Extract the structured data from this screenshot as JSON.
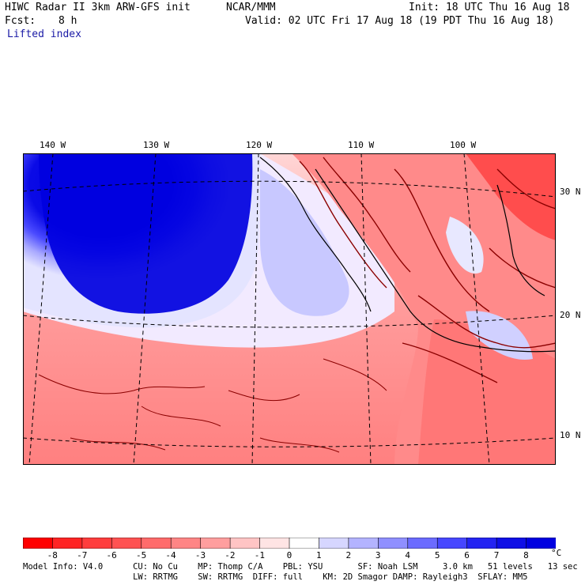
{
  "header": {
    "model": "HIWC Radar II 3km ARW-GFS init",
    "center": "NCAR/MMM",
    "init": "Init: 18 UTC Thu 16 Aug 18",
    "fcst_label": "Fcst:",
    "fcst_value": "8 h",
    "valid": "Valid: 02 UTC Fri 17 Aug 18 (19 PDT Thu 16 Aug 18)",
    "field": "Lifted index"
  },
  "map": {
    "lon_labels": [
      "140 W",
      "130 W",
      "120 W",
      "110 W",
      "100 W"
    ],
    "lat_labels": [
      "30 N",
      "20 N",
      "10 N"
    ],
    "colors": {
      "negative_strong": "#ff0000",
      "positive_strong": "#0000e6",
      "land_contour": "#8b0000"
    }
  },
  "colorbar": {
    "ticks": [
      "-8",
      "-7",
      "-6",
      "-5",
      "-4",
      "-3",
      "-2",
      "-1",
      "0",
      "1",
      "2",
      "3",
      "4",
      "5",
      "6",
      "7",
      "8"
    ],
    "unit": "°C",
    "colors": [
      "#ff0000",
      "#ff2424",
      "#ff3d3d",
      "#ff5252",
      "#ff6b6b",
      "#ff8585",
      "#ff9e9e",
      "#ffc4c4",
      "#ffe4e4",
      "#ffffff",
      "#d6d6ff",
      "#b3b3ff",
      "#8f8fff",
      "#6b6bff",
      "#4747ff",
      "#2424f2",
      "#0f0fe6",
      "#0000e0"
    ]
  },
  "model_info": {
    "line1": "Model Info: V4.0      CU: No Cu    MP: Thomp C/A    PBL: YSU       SF: Noah LSM     3.0 km   51 levels   13 sec",
    "line2": "                      LW: RRTMG    SW: RRTMG  DIFF: full    KM: 2D Smagor DAMP: Rayleigh3  SFLAY: MM5"
  }
}
